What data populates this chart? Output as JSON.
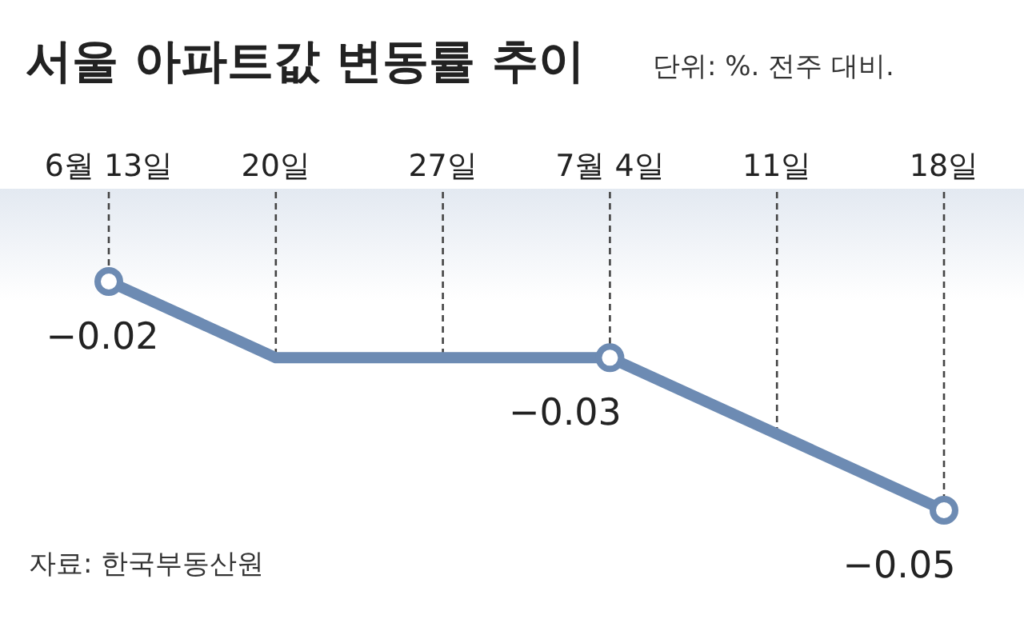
{
  "chart_data": {
    "type": "line",
    "title": "서울 아파트값 변동률 추이",
    "subtitle": "단위: %. 전주 대비.",
    "categories": [
      "6월 13일",
      "20일",
      "27일",
      "7월 4일",
      "11일",
      "18일"
    ],
    "series": [
      {
        "color": "#6d8bb3",
        "values": [
          -0.02,
          -0.03,
          -0.03,
          -0.03,
          -0.04,
          -0.05
        ],
        "value_labels": [
          "−0.02",
          null,
          null,
          "−0.03",
          null,
          "−0.05"
        ]
      }
    ],
    "marker": "circle",
    "grid": "x",
    "annotations": [
      "자료: 한국부동산원"
    ]
  }
}
